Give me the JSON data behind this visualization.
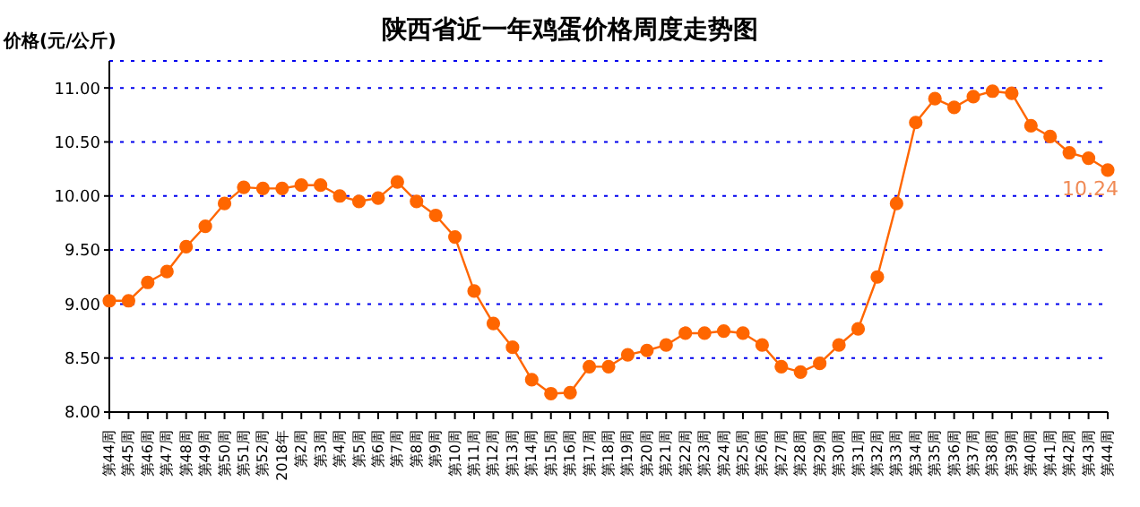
{
  "chart_data": {
    "type": "line",
    "title": "陕西省近一年鸡蛋价格周度走势图",
    "ylabel": "价格(元/公斤)",
    "categories": [
      "第44周",
      "第45周",
      "第46周",
      "第47周",
      "第48周",
      "第49周",
      "第50周",
      "第51周",
      "第52周",
      "2018年",
      "第2周",
      "第3周",
      "第4周",
      "第5周",
      "第6周",
      "第7周",
      "第8周",
      "第9周",
      "第10周",
      "第11周",
      "第12周",
      "第13周",
      "第14周",
      "第15周",
      "第16周",
      "第17周",
      "第18周",
      "第19周",
      "第20周",
      "第21周",
      "第22周",
      "第23周",
      "第24周",
      "第25周",
      "第26周",
      "第27周",
      "第28周",
      "第29周",
      "第30周",
      "第31周",
      "第32周",
      "第33周",
      "第34周",
      "第35周",
      "第36周",
      "第37周",
      "第38周",
      "第39周",
      "第40周",
      "第41周",
      "第42周",
      "第43周",
      "第44周"
    ],
    "series": [
      {
        "color": "#ff6600",
        "values": [
          9.03,
          9.03,
          9.2,
          9.3,
          9.53,
          9.72,
          9.93,
          10.08,
          10.07,
          10.07,
          10.1,
          10.1,
          10.0,
          9.95,
          9.98,
          10.13,
          9.95,
          9.82,
          9.62,
          9.12,
          8.82,
          8.6,
          8.3,
          8.17,
          8.18,
          8.42,
          8.42,
          8.53,
          8.57,
          8.62,
          8.73,
          8.73,
          8.75,
          8.73,
          8.62,
          8.42,
          8.37,
          8.45,
          8.62,
          8.77,
          9.25,
          9.93,
          10.68,
          10.9,
          10.82,
          10.92,
          10.97,
          10.95,
          10.65,
          10.55,
          10.4,
          10.35,
          10.24
        ],
        "value_labels": [
          null,
          null,
          null,
          null,
          null,
          null,
          null,
          null,
          null,
          null,
          null,
          null,
          null,
          null,
          null,
          null,
          null,
          null,
          null,
          null,
          null,
          null,
          null,
          null,
          null,
          null,
          null,
          null,
          null,
          null,
          null,
          null,
          null,
          null,
          null,
          null,
          null,
          null,
          null,
          null,
          null,
          null,
          null,
          null,
          null,
          null,
          null,
          null,
          null,
          null,
          null,
          null,
          "10.24"
        ]
      }
    ],
    "ylim": [
      8,
      11.25
    ],
    "yticks": [
      {
        "value": 8,
        "label": "8.00"
      },
      {
        "value": 8.5,
        "label": "8.50"
      },
      {
        "value": 9,
        "label": "9.00"
      },
      {
        "value": 9.5,
        "label": "9.50"
      },
      {
        "value": 10,
        "label": "10.00"
      },
      {
        "value": 10.5,
        "label": "10.50"
      },
      {
        "value": 11,
        "label": "11.00"
      }
    ],
    "grid": "y",
    "marker": "circle",
    "line_style": "solid"
  }
}
